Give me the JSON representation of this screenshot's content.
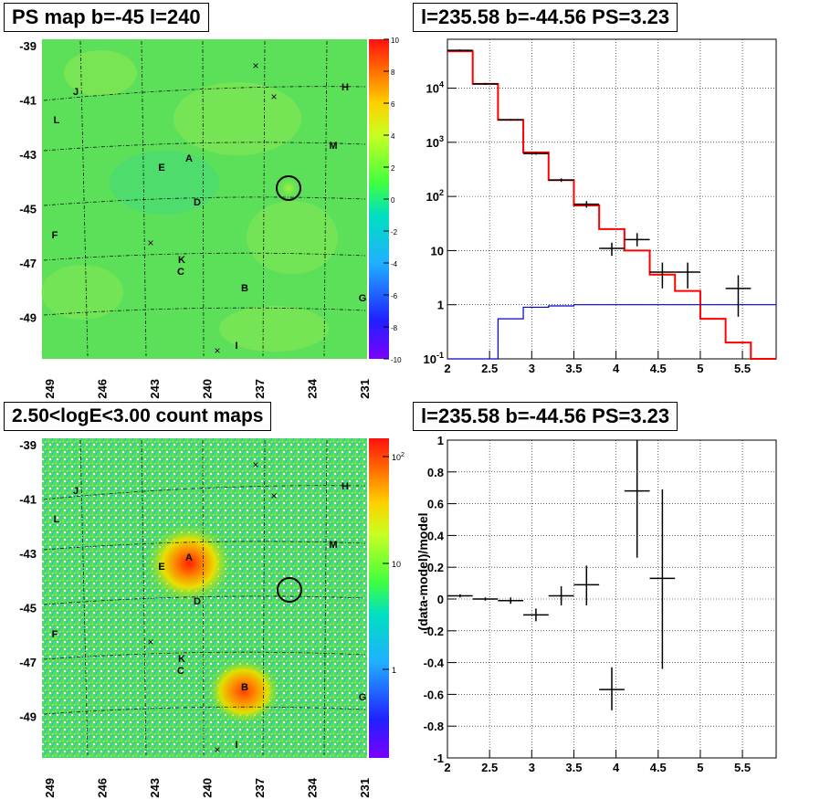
{
  "titles": {
    "map1": "PS map b=-45 l=240",
    "spec1": "l=235.58 b=-44.56 PS=3.23",
    "map2": "2.50<logE<3.00 count maps",
    "spec2": "l=235.58 b=-44.56 PS=3.23"
  },
  "colors": {
    "model": "#ff0000",
    "background_model": "#0000cc",
    "data": "#000000"
  },
  "chart_data": [
    {
      "type": "heatmap",
      "title": "PS map b=-45 l=240",
      "x_ticks": [
        "249",
        "246",
        "243",
        "240",
        "237",
        "234",
        "231"
      ],
      "y_ticks": [
        "-39",
        "-41",
        "-43",
        "-45",
        "-47",
        "-49"
      ],
      "colorbar_ticks": [
        "10",
        "8",
        "6",
        "4",
        "2",
        "0",
        "-2",
        "-4",
        "-6",
        "-8",
        "-10"
      ],
      "colorbar_range": [
        -10,
        10
      ],
      "sources": [
        "A",
        "B",
        "C",
        "D",
        "E",
        "F",
        "G",
        "H",
        "I",
        "J",
        "K",
        "L",
        "M"
      ],
      "highlight": "circle at l=235.58 b=-44.56"
    },
    {
      "type": "line",
      "title": "l=235.58 b=-44.56 PS=3.23",
      "xlim": [
        2,
        5.9
      ],
      "x_ticks": [
        "2",
        "2.5",
        "3",
        "3.5",
        "4",
        "4.5",
        "5",
        "5.5"
      ],
      "y_scale": "log",
      "ylim": [
        0.1,
        80000
      ],
      "y_ticks": [
        "10^-1",
        "1",
        "10",
        "10^2",
        "10^3",
        "10^4"
      ],
      "series": [
        {
          "type": "step",
          "color": "#ff0000",
          "edges": [
            2.0,
            2.3,
            2.6,
            2.9,
            3.2,
            3.5,
            3.8,
            4.1,
            4.4,
            4.7,
            5.0,
            5.3,
            5.6,
            5.9
          ],
          "values": [
            48000,
            12000,
            2600,
            650,
            200,
            68,
            25,
            10,
            3.6,
            1.8,
            0.55,
            0.2,
            0.09
          ]
        },
        {
          "type": "step",
          "color": "#0000cc",
          "edges": [
            2.0,
            2.3,
            2.6,
            2.9,
            3.2,
            3.5,
            3.8,
            4.1,
            4.4,
            4.7,
            5.0,
            5.3,
            5.6,
            5.9
          ],
          "values": [
            0.07,
            0.1,
            0.55,
            0.9,
            0.95,
            1.0,
            1.0,
            1.0,
            1.0,
            1.0,
            1.0,
            1.0,
            1.0
          ]
        },
        {
          "type": "errorbar",
          "color": "#000000",
          "points": [
            {
              "x": 2.15,
              "xerr": 0.15,
              "y": 50000,
              "ylo": 48000,
              "yhi": 52000
            },
            {
              "x": 2.45,
              "xerr": 0.15,
              "y": 12000,
              "ylo": 11500,
              "yhi": 12500
            },
            {
              "x": 2.75,
              "xerr": 0.15,
              "y": 2600,
              "ylo": 2500,
              "yhi": 2700
            },
            {
              "x": 3.05,
              "xerr": 0.15,
              "y": 620,
              "ylo": 590,
              "yhi": 650
            },
            {
              "x": 3.35,
              "xerr": 0.15,
              "y": 200,
              "ylo": 185,
              "yhi": 215
            },
            {
              "x": 3.65,
              "xerr": 0.15,
              "y": 72,
              "ylo": 62,
              "yhi": 82
            },
            {
              "x": 3.95,
              "xerr": 0.15,
              "y": 11,
              "ylo": 8,
              "yhi": 14
            },
            {
              "x": 4.25,
              "xerr": 0.15,
              "y": 16,
              "ylo": 12,
              "yhi": 21
            },
            {
              "x": 4.55,
              "xerr": 0.15,
              "y": 4,
              "ylo": 2,
              "yhi": 6
            },
            {
              "x": 4.85,
              "xerr": 0.15,
              "y": 4,
              "ylo": 2,
              "yhi": 6
            },
            {
              "x": 5.45,
              "xerr": 0.15,
              "y": 2,
              "ylo": 0.6,
              "yhi": 3.5
            }
          ]
        }
      ]
    },
    {
      "type": "heatmap",
      "title": "2.50<logE<3.00 count maps",
      "x_ticks": [
        "249",
        "246",
        "243",
        "240",
        "237",
        "234",
        "231"
      ],
      "y_ticks": [
        "-39",
        "-41",
        "-43",
        "-45",
        "-47",
        "-49"
      ],
      "colorbar_ticks": [
        "10^2",
        "10",
        "1"
      ],
      "colorbar_scale": "log",
      "sources": [
        "A",
        "B",
        "C",
        "D",
        "E",
        "F",
        "G",
        "H",
        "I",
        "J",
        "K",
        "L",
        "M"
      ],
      "highlight": "circle at l=235.58 b=-44.56"
    },
    {
      "type": "scatter",
      "title": "l=235.58 b=-44.56 PS=3.23",
      "ylabel": "(data-model)/model",
      "xlim": [
        2,
        5.9
      ],
      "ylim": [
        -1,
        1
      ],
      "x_ticks": [
        "2",
        "2.5",
        "3",
        "3.5",
        "4",
        "4.5",
        "5",
        "5.5"
      ],
      "y_ticks": [
        "1",
        "0.8",
        "0.6",
        "0.4",
        "0.2",
        "0",
        "-0.2",
        "-0.4",
        "-0.6",
        "-0.8",
        "-1"
      ],
      "points": [
        {
          "x": 2.15,
          "xerr": 0.15,
          "y": 0.02,
          "ylo": 0.01,
          "yhi": 0.03
        },
        {
          "x": 2.45,
          "xerr": 0.15,
          "y": 0.0,
          "ylo": -0.01,
          "yhi": 0.01
        },
        {
          "x": 2.75,
          "xerr": 0.15,
          "y": -0.01,
          "ylo": -0.03,
          "yhi": 0.01
        },
        {
          "x": 3.05,
          "xerr": 0.15,
          "y": -0.1,
          "ylo": -0.14,
          "yhi": -0.06
        },
        {
          "x": 3.35,
          "xerr": 0.15,
          "y": 0.02,
          "ylo": -0.04,
          "yhi": 0.08
        },
        {
          "x": 3.65,
          "xerr": 0.15,
          "y": 0.09,
          "ylo": -0.04,
          "yhi": 0.21
        },
        {
          "x": 3.95,
          "xerr": 0.15,
          "y": -0.57,
          "ylo": -0.7,
          "yhi": -0.43
        },
        {
          "x": 4.25,
          "xerr": 0.15,
          "y": 0.68,
          "ylo": 0.26,
          "yhi": 1.0
        },
        {
          "x": 4.55,
          "xerr": 0.15,
          "y": 0.13,
          "ylo": -0.44,
          "yhi": 0.69
        }
      ]
    }
  ]
}
